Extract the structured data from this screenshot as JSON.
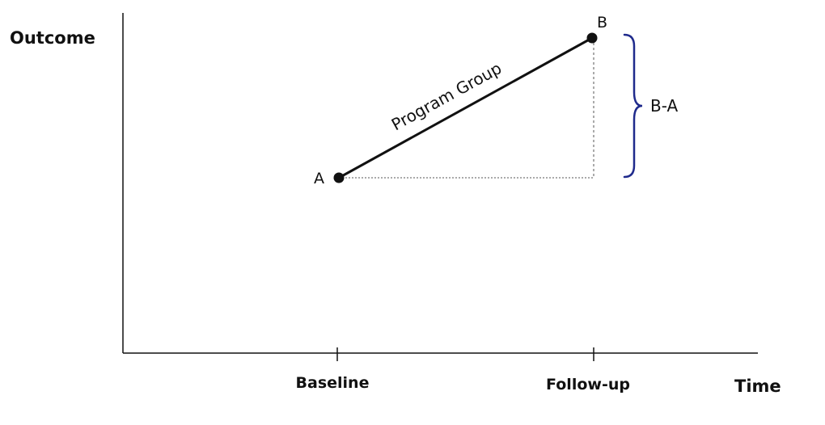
{
  "axes": {
    "y_title": "Outcome",
    "x_title": "Time",
    "ticks": [
      "Baseline",
      "Follow-up"
    ]
  },
  "points": {
    "a_label": "A",
    "b_label": "B"
  },
  "line_label": "Program Group",
  "brace_label": "B-A",
  "colors": {
    "ink": "#111111",
    "brace": "#1f2a8c"
  }
}
